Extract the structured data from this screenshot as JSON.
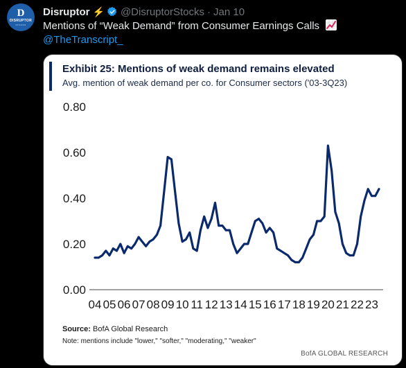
{
  "post": {
    "author": "Disruptor",
    "bolt_emoji": "⚡",
    "handle": "@DisruptorStocks",
    "separator": "·",
    "date": "Jan 10",
    "text": "Mentions of “Weak Demand” from Consumer Earnings Calls",
    "mention": "@TheTranscript_",
    "avatar": {
      "glyph": "D",
      "word": "DISRUPTOR",
      "sub": "STOCKS"
    }
  },
  "colors": {
    "background": "#000000",
    "link": "#1d9bf0",
    "verified": "#1d9bf0",
    "line": "#0b2a6b",
    "bolt": "#f5c518"
  },
  "icons": [
    "verified-badge-icon",
    "lightning-bolt-icon",
    "chart-increasing-icon"
  ],
  "exhibit": {
    "title": "Exhibit 25: Mentions of weak demand remains elevated",
    "subtitle": "Avg. mention of weak demand per co. for Consumer sectors ('03-3Q23)",
    "source_label": "Source:",
    "source_text": "BofA Global Research",
    "note": "Note: mentions include \"lower,\" \"softer,\" \"moderating,\" \"weaker\"",
    "brand": "BofA GLOBAL RESEARCH"
  },
  "chart_data": {
    "type": "line",
    "title": "Exhibit 25: Mentions of weak demand remains elevated",
    "subtitle": "Avg. mention of weak demand per co. for Consumer sectors ('03-3Q23)",
    "xlabel": "",
    "ylabel": "",
    "ylim": [
      0,
      0.8
    ],
    "yticks": [
      "0.00",
      "0.20",
      "0.40",
      "0.60",
      "0.80"
    ],
    "xticks": [
      "04",
      "05",
      "06",
      "07",
      "08",
      "09",
      "10",
      "11",
      "12",
      "13",
      "14",
      "15",
      "16",
      "17",
      "18",
      "19",
      "20",
      "21",
      "22",
      "23"
    ],
    "grid": false,
    "legend": "none",
    "series": [
      {
        "x": [
          2004.0,
          2004.25,
          2004.5,
          2004.75,
          2005.0,
          2005.25,
          2005.5,
          2005.75,
          2006.0,
          2006.25,
          2006.5,
          2006.75,
          2007.0,
          2007.25,
          2007.5,
          2007.75,
          2008.0,
          2008.25,
          2008.5,
          2008.75,
          2009.0,
          2009.25,
          2009.5,
          2009.75,
          2010.0,
          2010.25,
          2010.5,
          2010.75,
          2011.0,
          2011.25,
          2011.5,
          2011.75,
          2012.0,
          2012.25,
          2012.5,
          2012.75,
          2013.0,
          2013.25,
          2013.5,
          2013.75,
          2014.0,
          2014.25,
          2014.5,
          2014.75,
          2015.0,
          2015.25,
          2015.5,
          2015.75,
          2016.0,
          2016.25,
          2016.5,
          2016.75,
          2017.0,
          2017.25,
          2017.5,
          2017.75,
          2018.0,
          2018.25,
          2018.5,
          2018.75,
          2019.0,
          2019.25,
          2019.5,
          2019.75,
          2020.0,
          2020.25,
          2020.5,
          2020.75,
          2021.0,
          2021.25,
          2021.5,
          2021.75,
          2022.0,
          2022.25,
          2022.5,
          2022.75,
          2023.0,
          2023.25,
          2023.5
        ],
        "values": [
          0.14,
          0.14,
          0.15,
          0.17,
          0.15,
          0.18,
          0.17,
          0.2,
          0.16,
          0.19,
          0.18,
          0.2,
          0.23,
          0.21,
          0.19,
          0.21,
          0.22,
          0.24,
          0.28,
          0.43,
          0.58,
          0.57,
          0.43,
          0.29,
          0.21,
          0.22,
          0.25,
          0.18,
          0.17,
          0.26,
          0.32,
          0.27,
          0.31,
          0.38,
          0.28,
          0.28,
          0.26,
          0.26,
          0.2,
          0.16,
          0.18,
          0.2,
          0.2,
          0.25,
          0.3,
          0.31,
          0.29,
          0.25,
          0.27,
          0.25,
          0.18,
          0.17,
          0.16,
          0.15,
          0.13,
          0.12,
          0.12,
          0.14,
          0.18,
          0.22,
          0.24,
          0.3,
          0.3,
          0.32,
          0.63,
          0.52,
          0.34,
          0.29,
          0.2,
          0.16,
          0.15,
          0.15,
          0.2,
          0.32,
          0.39,
          0.44,
          0.41,
          0.41,
          0.44
        ]
      }
    ]
  }
}
